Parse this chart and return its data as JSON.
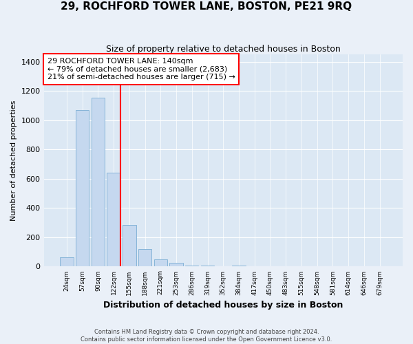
{
  "title": "29, ROCHFORD TOWER LANE, BOSTON, PE21 9RQ",
  "subtitle": "Size of property relative to detached houses in Boston",
  "xlabel": "Distribution of detached houses by size in Boston",
  "ylabel": "Number of detached properties",
  "categories": [
    "24sqm",
    "57sqm",
    "90sqm",
    "122sqm",
    "155sqm",
    "188sqm",
    "221sqm",
    "253sqm",
    "286sqm",
    "319sqm",
    "352sqm",
    "384sqm",
    "417sqm",
    "450sqm",
    "483sqm",
    "515sqm",
    "548sqm",
    "581sqm",
    "614sqm",
    "646sqm",
    "679sqm"
  ],
  "values": [
    65,
    1070,
    1155,
    640,
    285,
    120,
    48,
    25,
    5,
    5,
    0,
    5,
    0,
    0,
    0,
    0,
    0,
    0,
    0,
    0,
    0
  ],
  "bar_color": "#c5d8ef",
  "bar_edge_color": "#7aadd4",
  "annotation_line1": "29 ROCHFORD TOWER LANE: 140sqm",
  "annotation_line2": "← 79% of detached houses are smaller (2,683)",
  "annotation_line3": "21% of semi-detached houses are larger (715) →",
  "red_line_index": 3,
  "ylim": [
    0,
    1450
  ],
  "yticks": [
    0,
    200,
    400,
    600,
    800,
    1000,
    1200,
    1400
  ],
  "footnote1": "Contains HM Land Registry data © Crown copyright and database right 2024.",
  "footnote2": "Contains public sector information licensed under the Open Government Licence v3.0.",
  "background_color": "#eaf0f8",
  "plot_bg_color": "#dce8f4",
  "grid_color": "#ffffff",
  "title_fontsize": 11,
  "subtitle_fontsize": 9
}
